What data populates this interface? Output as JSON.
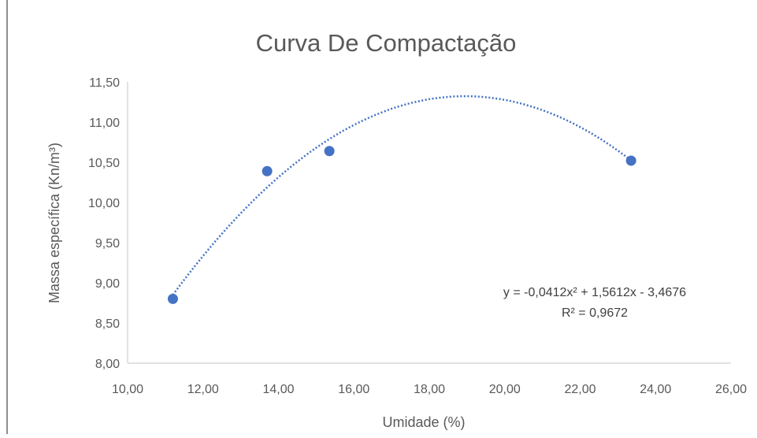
{
  "chart_data": {
    "type": "scatter",
    "title": "Curva De Compactação",
    "xlabel": "Umidade (%)",
    "ylabel": "Massa específica  (Kn/m³)",
    "xlim": [
      10,
      26
    ],
    "ylim": [
      8,
      11.5
    ],
    "x_ticks": [
      "10,00",
      "12,00",
      "14,00",
      "16,00",
      "18,00",
      "20,00",
      "22,00",
      "24,00",
      "26,00"
    ],
    "y_ticks": [
      "8,00",
      "8,50",
      "9,00",
      "9,50",
      "10,00",
      "10,50",
      "11,00",
      "11,50"
    ],
    "grid": false,
    "legend": "none",
    "series": [
      {
        "color": "#4472c4",
        "points": [
          {
            "x": 11.2,
            "y": 8.8
          },
          {
            "x": 13.7,
            "y": 10.39
          },
          {
            "x": 15.35,
            "y": 10.64
          },
          {
            "x": 23.35,
            "y": 10.52
          }
        ]
      }
    ],
    "trendline": {
      "type": "polynomial",
      "order": 2,
      "coefficients": {
        "a": -0.0412,
        "b": 1.5612,
        "c": -3.4676
      },
      "x_range": [
        11.2,
        23.35
      ],
      "style": "dotted",
      "color": "#4472c4"
    },
    "annotations": {
      "equation": "y = -0,0412x² + 1,5612x - 3,4676",
      "r_squared": "R² = 0,9672"
    }
  }
}
